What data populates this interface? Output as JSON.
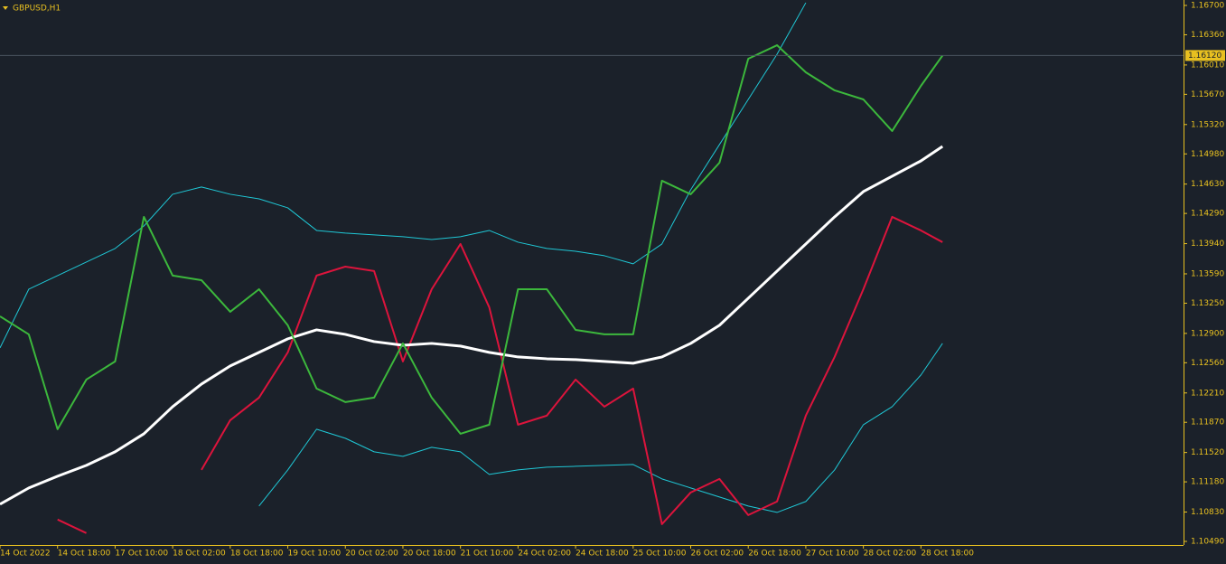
{
  "chart_data": {
    "type": "line",
    "title": "GBPUSD,H1",
    "x": [
      0,
      8,
      16,
      24,
      32,
      40,
      48,
      56,
      64,
      72,
      80,
      88,
      96,
      104,
      112,
      120,
      128,
      136,
      144,
      152,
      160,
      168,
      176,
      184,
      192,
      200,
      208,
      216,
      224,
      232,
      240,
      248,
      256,
      262
    ],
    "xlim": [
      0,
      329
    ],
    "xticks": [
      {
        "value": 0,
        "label": "14 Oct 2022"
      },
      {
        "value": 16,
        "label": "14 Oct 18:00"
      },
      {
        "value": 32,
        "label": "17 Oct 10:00"
      },
      {
        "value": 48,
        "label": "18 Oct 02:00"
      },
      {
        "value": 64,
        "label": "18 Oct 18:00"
      },
      {
        "value": 80,
        "label": "19 Oct 10:00"
      },
      {
        "value": 96,
        "label": "20 Oct 02:00"
      },
      {
        "value": 112,
        "label": "20 Oct 18:00"
      },
      {
        "value": 128,
        "label": "21 Oct 10:00"
      },
      {
        "value": 144,
        "label": "24 Oct 02:00"
      },
      {
        "value": 160,
        "label": "24 Oct 18:00"
      },
      {
        "value": 176,
        "label": "25 Oct 10:00"
      },
      {
        "value": 192,
        "label": "26 Oct 02:00"
      },
      {
        "value": 208,
        "label": "26 Oct 18:00"
      },
      {
        "value": 224,
        "label": "27 Oct 10:00"
      },
      {
        "value": 240,
        "label": "28 Oct 02:00"
      },
      {
        "value": 256,
        "label": "28 Oct 18:00"
      }
    ],
    "ylim": [
      1.10448,
      1.16763
    ],
    "yticks": [
      {
        "value": 1.167,
        "label": "1.16700"
      },
      {
        "value": 1.1636,
        "label": "1.16360"
      },
      {
        "value": 1.1601,
        "label": "1.16010"
      },
      {
        "value": 1.1567,
        "label": "1.15670"
      },
      {
        "value": 1.1532,
        "label": "1.15320"
      },
      {
        "value": 1.1498,
        "label": "1.14980"
      },
      {
        "value": 1.1463,
        "label": "1.14630"
      },
      {
        "value": 1.1429,
        "label": "1.14290"
      },
      {
        "value": 1.1394,
        "label": "1.13940"
      },
      {
        "value": 1.1359,
        "label": "1.13590"
      },
      {
        "value": 1.1325,
        "label": "1.13250"
      },
      {
        "value": 1.129,
        "label": "1.12900"
      },
      {
        "value": 1.1256,
        "label": "1.12560"
      },
      {
        "value": 1.1221,
        "label": "1.12210"
      },
      {
        "value": 1.1187,
        "label": "1.11870"
      },
      {
        "value": 1.1152,
        "label": "1.11520"
      },
      {
        "value": 1.1118,
        "label": "1.11180"
      },
      {
        "value": 1.1083,
        "label": "1.10830"
      },
      {
        "value": 1.1049,
        "label": "1.10490"
      }
    ],
    "price_line": {
      "value": 1.1612,
      "label": "1.16120"
    },
    "series": [
      {
        "color": "#1fc8d6",
        "width": 1,
        "values": [
          1.12732,
          1.13412,
          1.1357,
          1.13727,
          1.13884,
          1.14145,
          1.14512,
          1.14596,
          1.14512,
          1.14459,
          1.14355,
          1.14093,
          1.14062,
          1.14041,
          1.1402,
          1.13988,
          1.1402,
          1.14093,
          1.13957,
          1.13884,
          1.13852,
          1.138,
          1.13706,
          1.13936,
          1.14564,
          1.15088,
          1.15611,
          1.16135,
          1.16731,
          null,
          null,
          null,
          null,
          null
        ]
      },
      {
        "color": "#1fc8d6",
        "width": 1,
        "values": [
          null,
          null,
          null,
          null,
          null,
          null,
          null,
          null,
          null,
          1.109,
          1.11318,
          1.1179,
          1.11685,
          1.11528,
          1.11476,
          1.1158,
          1.11528,
          1.11266,
          1.11318,
          1.1135,
          1.1136,
          1.11371,
          1.11381,
          1.11214,
          1.11109,
          1.11004,
          1.109,
          1.10826,
          1.10952,
          1.11318,
          1.11842,
          1.12051,
          1.12418,
          1.12784
        ]
      },
      {
        "color": "#dc143c",
        "width": 2,
        "values": [
          null,
          null,
          1.10743,
          1.10586,
          null,
          null,
          null,
          1.11318,
          1.11894,
          1.12156,
          1.1268,
          1.1357,
          1.13674,
          1.13622,
          1.12575,
          1.13412,
          1.13936,
          1.13203,
          1.11842,
          1.11947,
          1.12365,
          1.12051,
          1.12261,
          1.1069,
          1.11057,
          1.11214,
          1.10795,
          1.10952,
          1.11947,
          1.12627,
          1.13412,
          1.1425,
          1.14093,
          1.13957
        ]
      },
      {
        "color": "#ffffff",
        "width": 3,
        "values": [
          1.10921,
          1.11109,
          1.11245,
          1.11371,
          1.11528,
          1.11737,
          1.12051,
          1.12313,
          1.12523,
          1.1268,
          1.12837,
          1.12941,
          1.12889,
          1.12805,
          1.12763,
          1.12784,
          1.12753,
          1.1268,
          1.12627,
          1.12606,
          1.12596,
          1.12575,
          1.12554,
          1.12627,
          1.12784,
          1.12994,
          1.13308,
          1.13622,
          1.13936,
          1.1425,
          1.14543,
          1.14721,
          1.14899,
          1.15067
        ]
      },
      {
        "color": "#3cb83c",
        "width": 2,
        "values": [
          1.13098,
          1.12889,
          1.1179,
          1.12365,
          1.12575,
          1.1425,
          1.1357,
          1.13517,
          1.13151,
          1.13412,
          1.12994,
          1.12261,
          1.12104,
          1.12156,
          1.12784,
          1.12156,
          1.11737,
          1.11842,
          1.13412,
          1.13412,
          1.12941,
          1.12889,
          1.12889,
          1.14669,
          1.14512,
          1.14878,
          1.16082,
          1.16239,
          1.15925,
          1.15716,
          1.15611,
          1.15245,
          1.15768,
          1.1612
        ]
      }
    ],
    "axis_color": "#e8c020"
  }
}
